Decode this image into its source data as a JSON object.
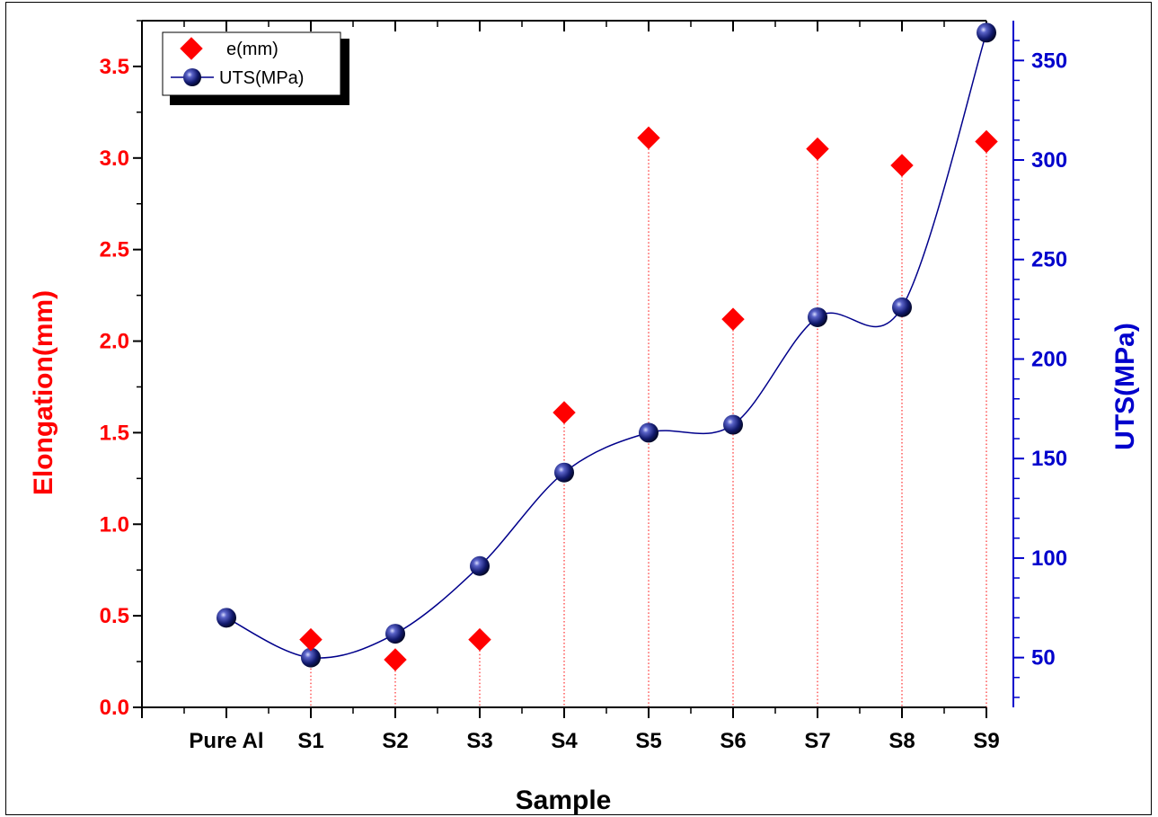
{
  "chart_data": {
    "type": "scatter",
    "categories": [
      "Pure Al",
      "S1",
      "S2",
      "S3",
      "S4",
      "S5",
      "S6",
      "S7",
      "S8",
      "S9"
    ],
    "xlabel": "Sample",
    "ylabel": "Elongation(mm)",
    "y2label": "UTS(MPa)",
    "ylim": [
      0,
      3.75
    ],
    "y2lim": [
      25,
      370
    ],
    "yticks": [
      "0.0",
      "0.5",
      "1.0",
      "1.5",
      "2.0",
      "2.5",
      "3.0",
      "3.5"
    ],
    "y2ticks": [
      "50",
      "100",
      "150",
      "200",
      "250",
      "300",
      "350"
    ],
    "grid": false,
    "legend_position": "top-left",
    "series": [
      {
        "name": "e(mm)",
        "axis": "left",
        "marker": "diamond",
        "drop_lines": true,
        "color": "#ff0000",
        "values": [
          null,
          0.37,
          0.26,
          0.37,
          1.61,
          3.11,
          2.12,
          3.05,
          2.96,
          3.09
        ]
      },
      {
        "name": "UTS(MPa)",
        "axis": "right",
        "marker": "sphere",
        "line": "smooth",
        "color": "#00008b",
        "values": [
          70,
          50,
          62,
          96,
          143,
          163,
          167,
          221,
          226,
          364
        ]
      }
    ],
    "colors": {
      "left_axis": "#ff0000",
      "right_axis": "#0000cc",
      "axes": "#000000"
    }
  }
}
